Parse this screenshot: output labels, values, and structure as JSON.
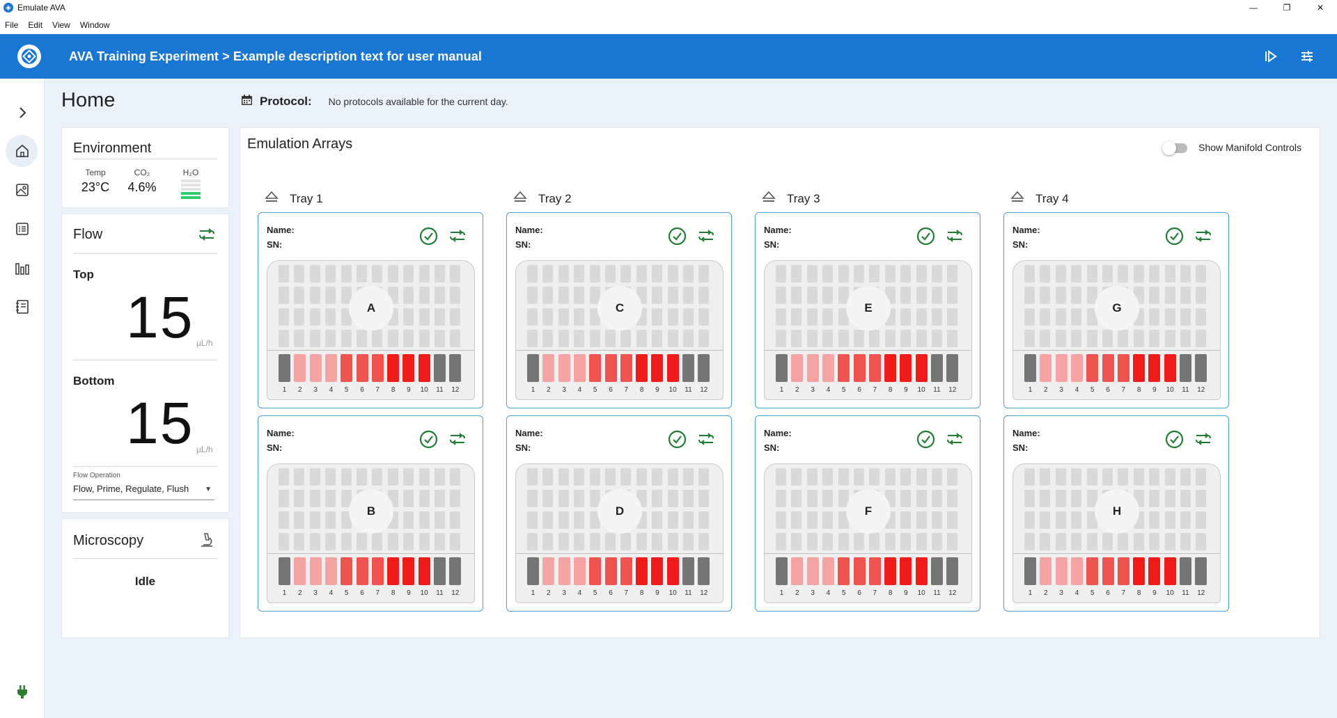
{
  "window": {
    "title": "Emulate AVA",
    "minimize": "—",
    "maximize": "❐",
    "close": "✕"
  },
  "menu": [
    "File",
    "Edit",
    "View",
    "Window"
  ],
  "header": {
    "title": "AVA Training Experiment > Example description text for user manual"
  },
  "page": {
    "title": "Home"
  },
  "protocol": {
    "label": "Protocol:",
    "text": "No protocols available for the current day."
  },
  "environment": {
    "title": "Environment",
    "temp_label": "Temp",
    "temp_value": "23°C",
    "co2_label": "CO₂",
    "co2_value": "4.6%",
    "h2o_label": "H₂O",
    "h2o_level": 0.4
  },
  "flow": {
    "title": "Flow",
    "top_label": "Top",
    "top_value": "15",
    "top_unit": "µL/h",
    "bottom_label": "Bottom",
    "bottom_value": "15",
    "bottom_unit": "µL/h",
    "operation_label": "Flow Operation",
    "operation_value": "Flow, Prime, Regulate, Flush"
  },
  "microscopy": {
    "title": "Microscopy",
    "status": "Idle"
  },
  "arrays": {
    "title": "Emulation Arrays",
    "toggle_label": "Show Manifold Controls",
    "toggle_on": false,
    "name_label": "Name:",
    "sn_label": "SN:",
    "trays": [
      {
        "label": "Tray 1",
        "chips": [
          "A",
          "B"
        ]
      },
      {
        "label": "Tray 2",
        "chips": [
          "C",
          "D"
        ]
      },
      {
        "label": "Tray 3",
        "chips": [
          "E",
          "F"
        ]
      },
      {
        "label": "Tray 4",
        "chips": [
          "G",
          "H"
        ]
      }
    ],
    "channel_numbers": [
      "1",
      "2",
      "3",
      "4",
      "5",
      "6",
      "7",
      "8",
      "9",
      "10",
      "11",
      "12"
    ],
    "channel_colors": [
      "#757575",
      "#f5a3a3",
      "#f5a3a3",
      "#f5a3a3",
      "#ef5350",
      "#ef5350",
      "#ef5350",
      "#f01c1c",
      "#f01c1c",
      "#f01c1c",
      "#757575",
      "#757575"
    ]
  },
  "colors": {
    "accent": "#1976d2",
    "ok": "#1e7d32",
    "card_border": "#4a9fd6"
  }
}
